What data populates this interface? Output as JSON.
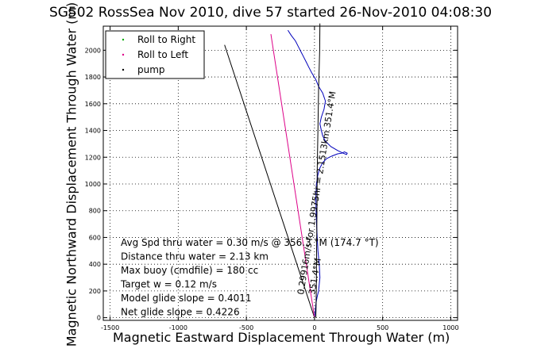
{
  "chart_data": {
    "type": "line",
    "title": "SG502 RossSea Nov 2010, dive 57 started 26-Nov-2010 04:08:30",
    "xlabel": "Magnetic Eastward Displacement Through Water (m)",
    "ylabel": "Magnetic Northward Displacement Through Water (m)",
    "xlim": [
      -1550,
      1050
    ],
    "ylim": [
      -20,
      2180
    ],
    "xticks": [
      -1500,
      -1000,
      -500,
      0,
      500,
      1000
    ],
    "yticks": [
      0,
      200,
      400,
      600,
      800,
      1000,
      1200,
      1400,
      1600,
      1800,
      2000
    ],
    "grid": true,
    "legend_position": "top-left",
    "legend": [
      {
        "label": "Roll to Right",
        "color": "#00aa00"
      },
      {
        "label": "Roll to Left",
        "color": "#dd0088"
      },
      {
        "label": "pump",
        "color": "#000000"
      }
    ],
    "series": [
      {
        "color": "#0000bb",
        "x": [
          0,
          5,
          10,
          18,
          30,
          40,
          35,
          25,
          20,
          15,
          12,
          10,
          14,
          25,
          40,
          60,
          90,
          130,
          170,
          200,
          220,
          240,
          235,
          210,
          170,
          120,
          80,
          60,
          50,
          40,
          50,
          70,
          80,
          60,
          30,
          10,
          -20,
          -40,
          -60,
          -80,
          -100,
          -120,
          -140,
          -170,
          -195
        ],
        "y": [
          0,
          40,
          100,
          150,
          200,
          300,
          400,
          500,
          600,
          700,
          800,
          900,
          1000,
          1070,
          1120,
          1160,
          1190,
          1210,
          1225,
          1230,
          1240,
          1230,
          1220,
          1230,
          1250,
          1280,
          1320,
          1360,
          1400,
          1450,
          1500,
          1560,
          1620,
          1680,
          1730,
          1780,
          1830,
          1870,
          1910,
          1950,
          1990,
          2030,
          2070,
          2110,
          2150
        ]
      },
      {
        "color": "#000000",
        "x": [
          40,
          38,
          30,
          25,
          20,
          18,
          15,
          14,
          12,
          10
        ],
        "y": [
          2200,
          2000,
          1700,
          1400,
          1100,
          800,
          500,
          300,
          100,
          0
        ]
      },
      {
        "color": "#000000",
        "x": [
          0,
          -660
        ],
        "y": [
          0,
          2040
        ]
      },
      {
        "color": "#dd0088",
        "x": [
          0,
          -320
        ],
        "y": [
          0,
          2120
        ]
      }
    ],
    "annotations": [
      "Avg Spd thru water =  0.30 m/s @ 356.3   °M (174.7 °T)",
      "Distance thru water =  2.13 km",
      "Max buoy (cmdfile) = 180 cc",
      "Target w = 0.12 m/s",
      "Model glide slope = 0.4011",
      "Net glide slope = 0.4226"
    ],
    "rotated_annotations": [
      "0.29916m/s for 1.9975hr = 2.1513km 351.4°M",
      "351.4°M"
    ]
  }
}
